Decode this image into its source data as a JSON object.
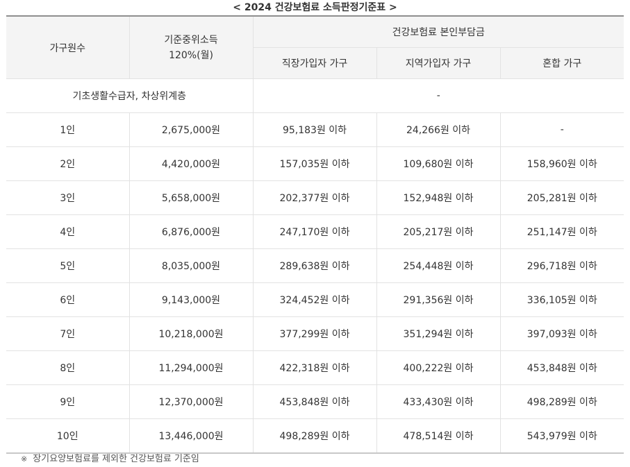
{
  "title": "< 2024 건강보험료 소득판정기준표 >",
  "headers": {
    "household": "가구원수",
    "income_line1": "기준중위소득",
    "income_line2": "120%(월)",
    "burden": "건강보험료 본인부담금",
    "workplace": "직장가입자 가구",
    "regional": "지역가입자 가구",
    "mixed": "혼합 가구"
  },
  "special_row": {
    "label": "기초생활수급자, 차상위계층",
    "value": "-"
  },
  "rows": [
    {
      "household": "1인",
      "income": "2,675,000원",
      "workplace": "95,183원 이하",
      "regional": "24,266원 이하",
      "mixed": "-"
    },
    {
      "household": "2인",
      "income": "4,420,000원",
      "workplace": "157,035원 이하",
      "regional": "109,680원 이하",
      "mixed": "158,960원 이하"
    },
    {
      "household": "3인",
      "income": "5,658,000원",
      "workplace": "202,377원 이하",
      "regional": "152,948원 이하",
      "mixed": "205,281원 이하"
    },
    {
      "household": "4인",
      "income": "6,876,000원",
      "workplace": "247,170원 이하",
      "regional": "205,217원 이하",
      "mixed": "251,147원 이하"
    },
    {
      "household": "5인",
      "income": "8,035,000원",
      "workplace": "289,638원 이하",
      "regional": "254,448원 이하",
      "mixed": "296,718원 이하"
    },
    {
      "household": "6인",
      "income": "9,143,000원",
      "workplace": "324,452원 이하",
      "regional": "291,356원 이하",
      "mixed": "336,105원 이하"
    },
    {
      "household": "7인",
      "income": "10,218,000원",
      "workplace": "377,299원 이하",
      "regional": "351,294원 이하",
      "mixed": "397,093원 이하"
    },
    {
      "household": "8인",
      "income": "11,294,000원",
      "workplace": "422,318원 이하",
      "regional": "400,222원 이하",
      "mixed": "453,848원 이하"
    },
    {
      "household": "9인",
      "income": "12,370,000원",
      "workplace": "453,848원 이하",
      "regional": "433,430원 이하",
      "mixed": "498,289원 이하"
    },
    {
      "household": "10인",
      "income": "13,446,000원",
      "workplace": "498,289원 이하",
      "regional": "478,514원 이하",
      "mixed": "543,979원 이하"
    }
  ],
  "note": {
    "mark": "※",
    "text": "장기요양보험료를 제외한 건강보험료 기준임"
  }
}
